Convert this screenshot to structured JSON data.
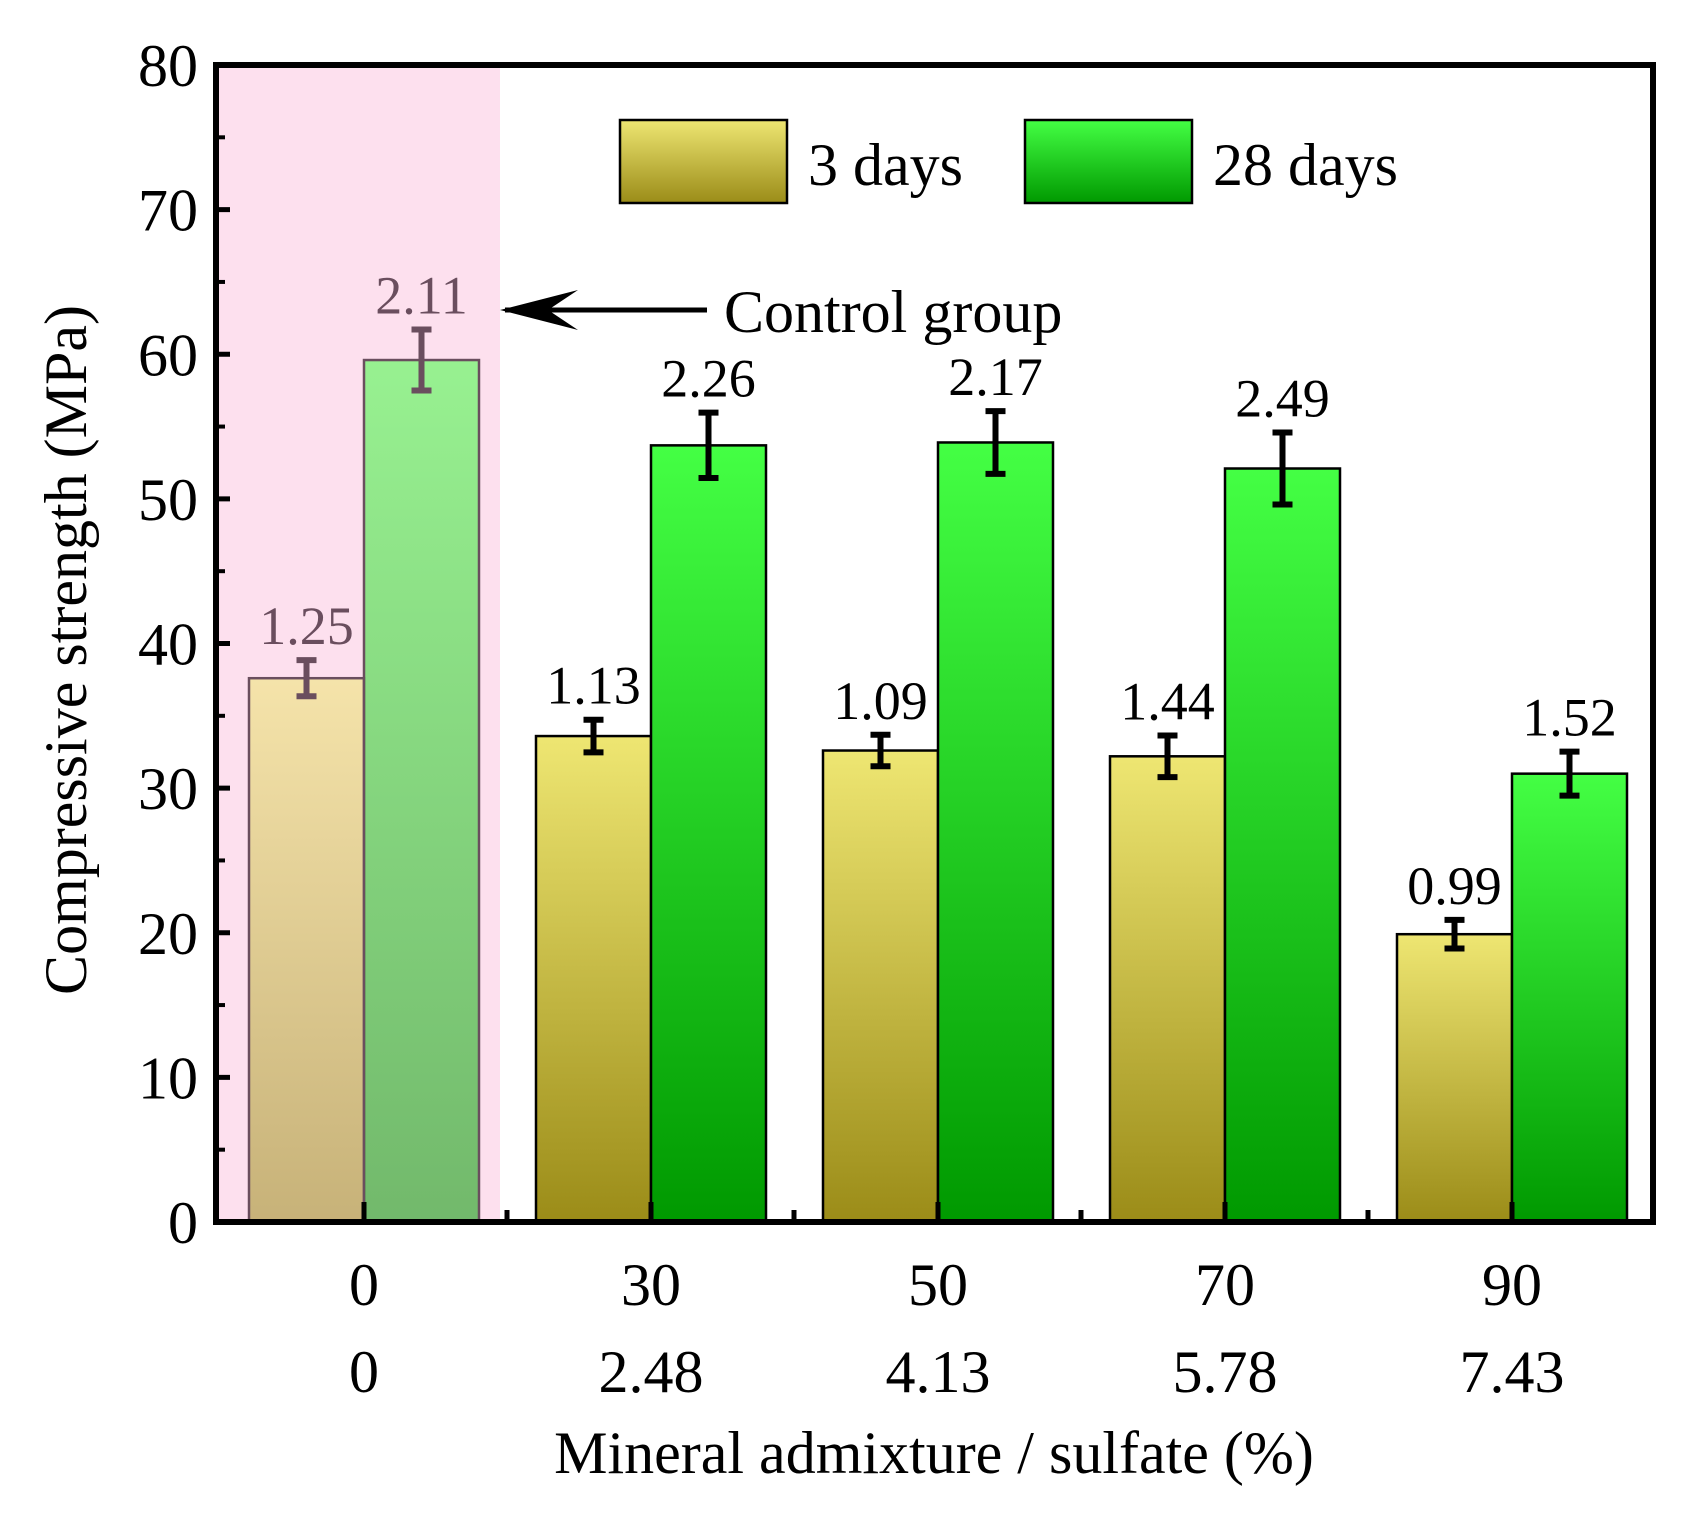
{
  "chart_data": {
    "type": "bar",
    "ylabel": "Compressive strength (MPa)",
    "xlabel": "Mineral admixture / sulfate (%)",
    "ylim": [
      0,
      80
    ],
    "yticks": [
      0,
      10,
      20,
      30,
      40,
      50,
      60,
      70,
      80
    ],
    "categories": [
      {
        "line1": "0",
        "line2": "0"
      },
      {
        "line1": "30",
        "line2": "2.48"
      },
      {
        "line1": "50",
        "line2": "4.13"
      },
      {
        "line1": "70",
        "line2": "5.78"
      },
      {
        "line1": "90",
        "line2": "7.43"
      }
    ],
    "series": [
      {
        "name": "3 days",
        "values": [
          37.6,
          33.6,
          32.6,
          32.2,
          19.9
        ],
        "errors": [
          1.25,
          1.13,
          1.09,
          1.44,
          0.99
        ],
        "labels": [
          "1.25",
          "1.13",
          "1.09",
          "1.44",
          "0.99"
        ]
      },
      {
        "name": "28 days",
        "values": [
          59.6,
          53.7,
          53.9,
          52.1,
          31.0
        ],
        "errors": [
          2.11,
          2.26,
          2.17,
          2.49,
          1.52
        ],
        "labels": [
          "2.11",
          "2.26",
          "2.17",
          "2.49",
          "1.52"
        ]
      }
    ],
    "legend": {
      "position": "top-center"
    },
    "annotation": {
      "text": "Control group",
      "target_category": 0,
      "target_series": "28 days"
    },
    "highlight": {
      "category_index": 0
    }
  },
  "colors": {
    "series_3d_top": "#eee672",
    "series_3d_bottom": "#9b8c18",
    "series_28d_top": "#44ff44",
    "series_28d_bottom": "#009900",
    "highlight_fill": "#fde0ee",
    "muted_text": "#6a4e5e",
    "axis": "#000000"
  }
}
